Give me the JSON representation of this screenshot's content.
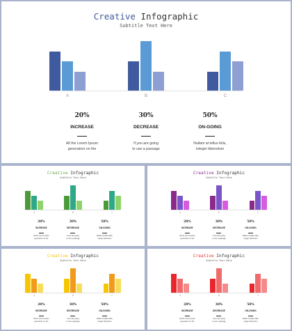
{
  "title_accent": "Creative",
  "title_rest": " Infographic",
  "subtitle": "Subtitle Text Here",
  "categories": [
    "A",
    "B",
    "C"
  ],
  "stats": [
    {
      "percent": "20%",
      "label": "INCREASE",
      "desc_line1": "All the Lorem Ipsum",
      "desc_line2": "generators on the"
    },
    {
      "percent": "30%",
      "label": "DECREASE",
      "desc_line1": "If you are going",
      "desc_line2": "to use a passage"
    },
    {
      "percent": "50%",
      "label": "ON-GOING",
      "desc_line1": "Nullam at tellus felis,",
      "desc_line2": "integer bibendum"
    }
  ],
  "chart_data": {
    "type": "bar",
    "categories": [
      "A",
      "B",
      "C"
    ],
    "series": [
      {
        "values": [
          3.9,
          2.9,
          1.9
        ]
      },
      {
        "values": [
          2.9,
          4.9,
          3.9
        ]
      },
      {
        "values": [
          1.9,
          1.9,
          2.9
        ]
      }
    ],
    "ylim": [
      0,
      5
    ]
  },
  "themes": {
    "main": {
      "accent": "#3f5a99",
      "bars": [
        "#3f5a9e",
        "#5b9bd5",
        "#8e9fd4"
      ]
    },
    "green": {
      "accent": "#6aa84f",
      "bars": [
        "#4a9a3a",
        "#2ea886",
        "#8ed46b"
      ]
    },
    "purple": {
      "accent": "#8a2a8a",
      "bars": [
        "#8a2a8a",
        "#7a55c8",
        "#d65be0"
      ]
    },
    "yellow": {
      "accent": "#f0c400",
      "bars": [
        "#f6c600",
        "#f29a1a",
        "#f8dd5a"
      ]
    },
    "red": {
      "accent": "#e0302f",
      "bars": [
        "#e8262b",
        "#f06b6b",
        "#f58a8a"
      ]
    }
  }
}
